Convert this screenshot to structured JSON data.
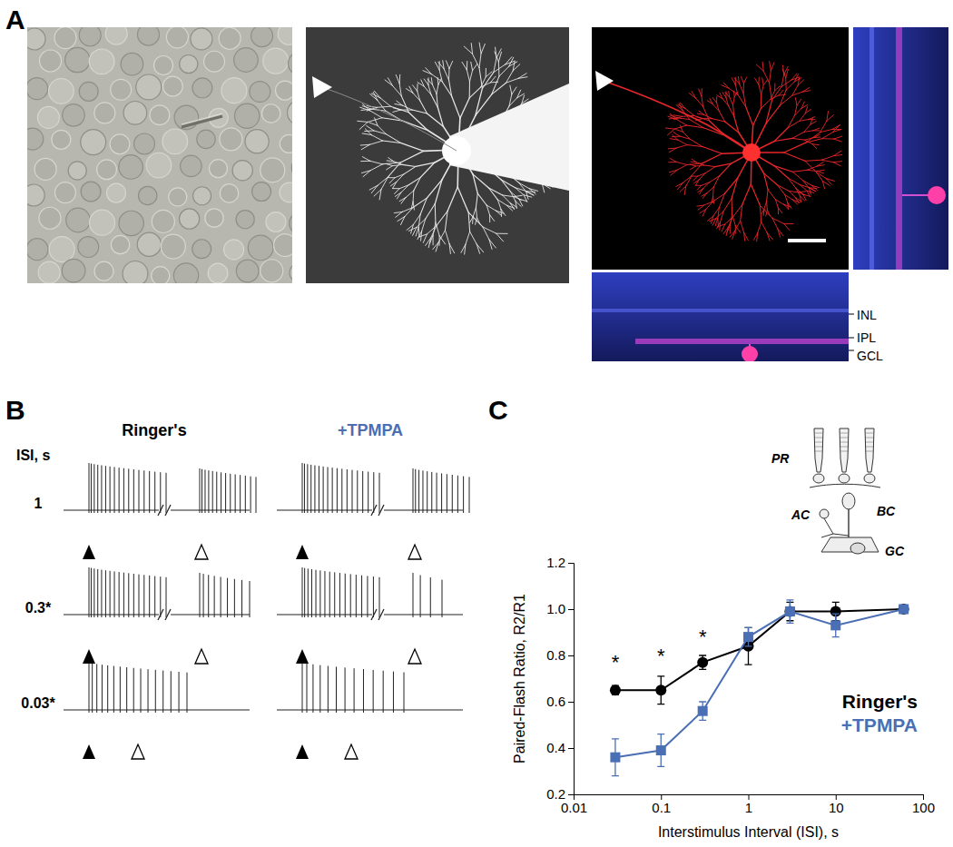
{
  "chart_data": {
    "type": "line",
    "x_label": "Interstimulus Interval (ISI), s",
    "y_label": "Paired-Flash Ratio, R2/R1",
    "x": [
      0.03,
      0.1,
      0.3,
      1,
      3,
      10,
      60
    ],
    "series": [
      {
        "name": "Ringer's",
        "color": "#000000",
        "marker": "circle",
        "values": [
          0.65,
          0.65,
          0.77,
          0.84,
          0.99,
          0.99,
          1.0
        ],
        "errors": [
          0.02,
          0.06,
          0.03,
          0.08,
          0.04,
          0.04,
          0.01
        ]
      },
      {
        "name": "+TPMPA",
        "color": "#4a6fb5",
        "marker": "square",
        "values": [
          0.36,
          0.39,
          0.56,
          0.88,
          0.99,
          0.93,
          1.0
        ],
        "errors": [
          0.08,
          0.07,
          0.04,
          0.04,
          0.05,
          0.05,
          0.01
        ]
      }
    ],
    "xlim": [
      0.01,
      100
    ],
    "xticks": [
      0.01,
      0.1,
      1,
      10,
      100
    ],
    "ylim": [
      0.2,
      1.2
    ],
    "yticks": [
      0.2,
      0.4,
      0.6,
      0.8,
      {
        "value": 1,
        "label": "1.0"
      },
      1.2
    ],
    "log": "x",
    "grid": false,
    "legend": "lower right",
    "annotations": [
      {
        "text": "*",
        "x": 0.03,
        "y": 0.74
      },
      {
        "text": "*",
        "x": 0.1,
        "y": 0.77
      },
      {
        "text": "*",
        "x": 0.3,
        "y": 0.85
      }
    ]
  },
  "figure": {
    "panel_labels": [
      "A",
      "B",
      "C"
    ],
    "panel_a": {
      "layer_labels": [
        "INL",
        "IPL",
        "GCL"
      ]
    },
    "panel_b": {
      "conditions": [
        {
          "text": "Ringer's",
          "color": "#000000"
        },
        {
          "text": "+TPMPA",
          "color": "#4a6fb5"
        }
      ],
      "row_title": "ISI, s",
      "rows": [
        "1",
        "0.3*",
        "0.03*"
      ]
    },
    "panel_c_inset": {
      "labels": [
        "PR",
        "AC",
        "BC",
        "GC"
      ]
    }
  }
}
